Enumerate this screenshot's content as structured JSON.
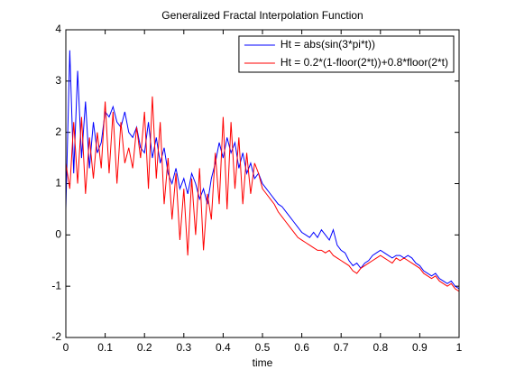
{
  "chart_data": {
    "type": "line",
    "title": "Generalized Fractal Interpolation Function",
    "xlabel": "time",
    "x": [
      0,
      0.01,
      0.02,
      0.03,
      0.04,
      0.05,
      0.06,
      0.07,
      0.08,
      0.09,
      0.1,
      0.11,
      0.12,
      0.13,
      0.14,
      0.15,
      0.16,
      0.17,
      0.18,
      0.19,
      0.2,
      0.21,
      0.22,
      0.23,
      0.24,
      0.25,
      0.26,
      0.27,
      0.28,
      0.29,
      0.3,
      0.31,
      0.32,
      0.33,
      0.34,
      0.35,
      0.36,
      0.37,
      0.38,
      0.39,
      0.4,
      0.41,
      0.42,
      0.43,
      0.44,
      0.45,
      0.46,
      0.47,
      0.48,
      0.49,
      0.5,
      0.51,
      0.52,
      0.53,
      0.54,
      0.55,
      0.56,
      0.57,
      0.58,
      0.59,
      0.6,
      0.61,
      0.62,
      0.63,
      0.64,
      0.65,
      0.66,
      0.67,
      0.68,
      0.69,
      0.7,
      0.71,
      0.72,
      0.73,
      0.74,
      0.75,
      0.76,
      0.77,
      0.78,
      0.79,
      0.8,
      0.81,
      0.82,
      0.83,
      0.84,
      0.85,
      0.86,
      0.87,
      0.88,
      0.89,
      0.9,
      0.91,
      0.92,
      0.93,
      0.94,
      0.95,
      0.96,
      0.97,
      0.98,
      0.99,
      1
    ],
    "series": [
      {
        "name": "Ht = abs(sin(3*pi*t))",
        "color": "#0000ff",
        "values": [
          0.5,
          3.6,
          1.2,
          3.2,
          1.5,
          2.6,
          1.3,
          2.2,
          1.6,
          1.8,
          2.4,
          2.3,
          2.5,
          2.2,
          2.1,
          2.4,
          2.0,
          1.9,
          2.1,
          1.7,
          1.6,
          2.2,
          1.5,
          1.9,
          1.4,
          1.7,
          1.2,
          1.0,
          1.3,
          0.9,
          1.1,
          0.8,
          1.2,
          1.0,
          0.7,
          0.9,
          0.6,
          1.1,
          1.4,
          1.8,
          1.5,
          1.9,
          1.6,
          1.8,
          1.3,
          1.6,
          1.2,
          1.4,
          1.1,
          1.2,
          1.0,
          0.9,
          0.8,
          0.7,
          0.6,
          0.55,
          0.45,
          0.35,
          0.25,
          0.15,
          0.05,
          0.0,
          -0.05,
          0.05,
          -0.05,
          0.1,
          0.0,
          -0.1,
          0.1,
          -0.2,
          -0.3,
          -0.35,
          -0.5,
          -0.6,
          -0.55,
          -0.65,
          -0.55,
          -0.5,
          -0.4,
          -0.35,
          -0.3,
          -0.35,
          -0.4,
          -0.45,
          -0.4,
          -0.4,
          -0.45,
          -0.4,
          -0.45,
          -0.55,
          -0.6,
          -0.7,
          -0.75,
          -0.8,
          -0.75,
          -0.85,
          -0.9,
          -0.95,
          -0.9,
          -1.0,
          -1.05
        ]
      },
      {
        "name": "Ht = 0.2*(1-floor(2*t))+0.8*floor(2*t)",
        "color": "#ff0000",
        "values": [
          1.4,
          0.9,
          2.2,
          1.0,
          2.3,
          0.8,
          1.9,
          1.1,
          2.0,
          1.3,
          2.6,
          1.2,
          2.4,
          1.0,
          2.2,
          1.4,
          1.7,
          1.3,
          2.1,
          1.5,
          2.4,
          0.9,
          2.7,
          1.1,
          2.2,
          0.6,
          1.5,
          0.3,
          1.2,
          -0.1,
          0.9,
          -0.4,
          1.1,
          0.0,
          1.3,
          -0.3,
          0.8,
          0.3,
          1.6,
          0.6,
          2.3,
          0.5,
          2.2,
          0.9,
          1.9,
          0.6,
          1.6,
          0.8,
          1.4,
          1.2,
          0.9,
          0.8,
          0.7,
          0.6,
          0.45,
          0.35,
          0.25,
          0.15,
          0.05,
          -0.05,
          -0.1,
          -0.15,
          -0.2,
          -0.25,
          -0.3,
          -0.3,
          -0.35,
          -0.3,
          -0.4,
          -0.45,
          -0.5,
          -0.55,
          -0.6,
          -0.7,
          -0.75,
          -0.65,
          -0.6,
          -0.55,
          -0.5,
          -0.45,
          -0.4,
          -0.45,
          -0.5,
          -0.55,
          -0.45,
          -0.5,
          -0.45,
          -0.5,
          -0.55,
          -0.6,
          -0.65,
          -0.75,
          -0.8,
          -0.85,
          -0.8,
          -0.9,
          -0.95,
          -1.0,
          -0.95,
          -1.05,
          -1.1
        ]
      }
    ],
    "xlim": [
      0,
      1
    ],
    "xticks": [
      0,
      0.1,
      0.2,
      0.3,
      0.4,
      0.5,
      0.6,
      0.7,
      0.8,
      0.9,
      1
    ],
    "ylim": [
      -2,
      4
    ],
    "yticks": [
      -2,
      -1,
      0,
      1,
      2,
      3,
      4
    ],
    "grid": false,
    "legend": "northeast"
  }
}
